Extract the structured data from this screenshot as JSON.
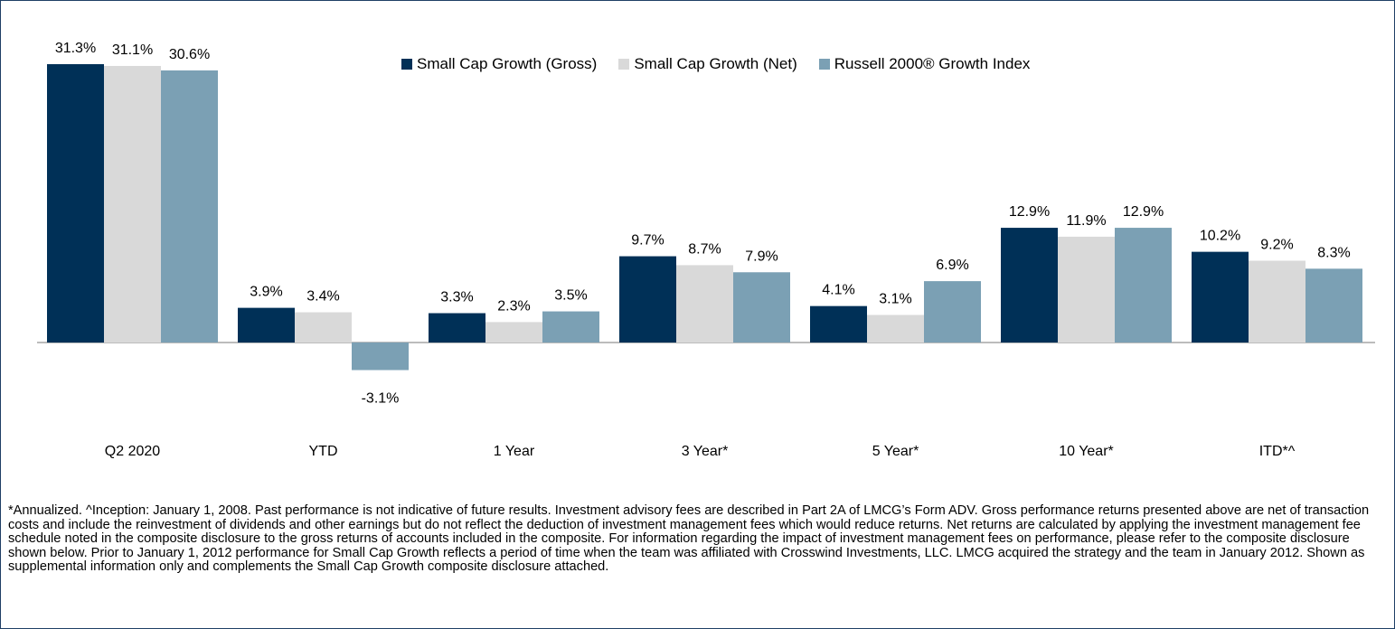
{
  "chart_data": {
    "type": "bar",
    "categories": [
      "Q2 2020",
      "YTD",
      "1 Year",
      "3 Year*",
      "5 Year*",
      "10 Year*",
      "ITD*^"
    ],
    "series": [
      {
        "name": "Small Cap Growth (Gross)",
        "color": "#003057",
        "values": [
          31.3,
          3.9,
          3.3,
          9.7,
          4.1,
          12.9,
          10.2
        ],
        "value_labels": [
          "31.3%",
          "3.9%",
          "3.3%",
          "9.7%",
          "4.1%",
          "12.9%",
          "10.2%"
        ]
      },
      {
        "name": "Small Cap Growth (Net)",
        "color": "#d9d9d9",
        "values": [
          31.1,
          3.4,
          2.3,
          8.7,
          3.1,
          11.9,
          9.2
        ],
        "value_labels": [
          "31.1%",
          "3.4%",
          "2.3%",
          "8.7%",
          "3.1%",
          "11.9%",
          "9.2%"
        ]
      },
      {
        "name": "Russell 2000® Growth Index",
        "color": "#7ba0b4",
        "values": [
          30.6,
          -3.1,
          3.5,
          7.9,
          6.9,
          12.9,
          8.3
        ],
        "value_labels": [
          "30.6%",
          "-3.1%",
          "3.5%",
          "7.9%",
          "6.9%",
          "12.9%",
          "8.3%"
        ]
      }
    ],
    "footnote": "*Annualized.  ^Inception: January 1, 2008. Past performance is not indicative of future results. Investment advisory fees are described in Part 2A of LMCG’s Form ADV. Gross performance returns presented above are net of transaction costs and include the reinvestment of dividends and other earnings but do not reflect the deduction of investment management fees which would reduce returns. Net returns are calculated by applying the investment management fee schedule noted in the composite disclosure to the gross returns of accounts included in the composite. For information regarding the impact of investment management fees on performance, please refer to the composite disclosure shown below. Prior to January 1, 2012 performance for Small Cap Growth reflects a period of time when the team was affiliated with Crosswind Investments, LLC. LMCG acquired the strategy and the team in January 2012. Shown as supplemental information only and complements the Small Cap Growth composite disclosure attached."
  }
}
